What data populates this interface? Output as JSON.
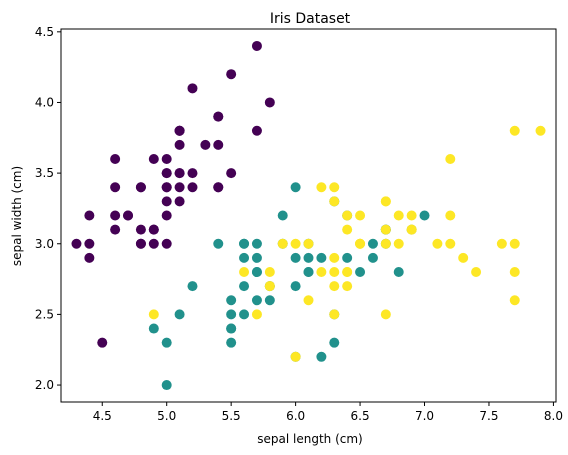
{
  "chart_data": {
    "type": "scatter",
    "title": "Iris Dataset",
    "xlabel": "sepal length (cm)",
    "ylabel": "sepal width (cm)",
    "xlim": [
      4.18,
      8.02
    ],
    "ylim": [
      1.88,
      4.52
    ],
    "xticks": [
      4.5,
      5.0,
      5.5,
      6.0,
      6.5,
      7.0,
      7.5,
      8.0
    ],
    "xtick_labels": [
      "4.5",
      "5.0",
      "5.5",
      "6.0",
      "6.5",
      "7.0",
      "7.5",
      "8.0"
    ],
    "yticks": [
      2.0,
      2.5,
      3.0,
      3.5,
      4.0,
      4.5
    ],
    "ytick_labels": [
      "2.0",
      "2.5",
      "3.0",
      "3.5",
      "4.0",
      "4.5"
    ],
    "grid": false,
    "colors": [
      "#440154",
      "#21918c",
      "#fde725"
    ],
    "series": [
      {
        "x": [
          5.1,
          4.9,
          4.7,
          4.6,
          5.0,
          5.4,
          4.6,
          5.0,
          4.4,
          4.9,
          5.4,
          4.8,
          4.8,
          4.3,
          5.8,
          5.7,
          5.4,
          5.1,
          5.7,
          5.1,
          5.4,
          5.1,
          4.6,
          5.1,
          4.8,
          5.0,
          5.0,
          5.2,
          5.2,
          4.7,
          4.8,
          5.4,
          5.2,
          5.5,
          4.9,
          5.0,
          5.5,
          4.9,
          4.4,
          5.1,
          5.0,
          4.5,
          4.4,
          5.0,
          5.1,
          4.8,
          5.1,
          4.6,
          5.3,
          5.0
        ],
        "y": [
          3.5,
          3.0,
          3.2,
          3.1,
          3.6,
          3.9,
          3.4,
          3.4,
          2.9,
          3.1,
          3.7,
          3.4,
          3.0,
          3.0,
          4.0,
          4.4,
          3.9,
          3.5,
          3.8,
          3.8,
          3.4,
          3.7,
          3.6,
          3.3,
          3.4,
          3.0,
          3.4,
          3.5,
          3.4,
          3.2,
          3.1,
          3.4,
          4.1,
          4.2,
          3.1,
          3.2,
          3.5,
          3.6,
          3.0,
          3.4,
          3.5,
          2.3,
          3.2,
          3.5,
          3.8,
          3.0,
          3.8,
          3.2,
          3.7,
          3.3
        ]
      },
      {
        "x": [
          7.0,
          6.4,
          6.9,
          5.5,
          6.5,
          5.7,
          6.3,
          4.9,
          6.6,
          5.2,
          5.0,
          5.9,
          6.0,
          6.1,
          5.6,
          6.7,
          5.6,
          5.8,
          6.2,
          5.6,
          5.9,
          6.1,
          6.3,
          6.1,
          6.4,
          6.6,
          6.8,
          6.7,
          6.0,
          5.7,
          5.5,
          5.5,
          5.8,
          6.0,
          5.4,
          6.0,
          6.7,
          6.3,
          5.6,
          5.5,
          5.5,
          6.1,
          5.8,
          5.0,
          5.6,
          5.7,
          5.7,
          6.2,
          5.1,
          5.7
        ],
        "y": [
          3.2,
          3.2,
          3.1,
          2.3,
          2.8,
          2.8,
          3.3,
          2.4,
          2.9,
          2.7,
          2.0,
          3.0,
          2.2,
          2.9,
          2.9,
          3.1,
          3.0,
          2.7,
          2.2,
          2.5,
          3.2,
          2.8,
          2.5,
          2.8,
          2.9,
          3.0,
          2.8,
          3.0,
          2.9,
          2.6,
          2.4,
          2.4,
          2.7,
          2.7,
          3.0,
          3.4,
          3.1,
          2.3,
          3.0,
          2.5,
          2.6,
          3.0,
          2.6,
          2.3,
          2.7,
          3.0,
          2.9,
          2.9,
          2.5,
          2.8
        ]
      },
      {
        "x": [
          6.3,
          5.8,
          7.1,
          6.3,
          6.5,
          7.6,
          4.9,
          7.3,
          6.7,
          7.2,
          6.5,
          6.4,
          6.8,
          5.7,
          5.8,
          6.4,
          6.5,
          7.7,
          7.7,
          6.0,
          6.9,
          5.6,
          7.7,
          6.3,
          6.7,
          7.2,
          6.2,
          6.1,
          6.4,
          7.2,
          7.4,
          7.9,
          6.4,
          6.3,
          6.1,
          7.7,
          6.3,
          6.4,
          6.0,
          6.9,
          6.7,
          6.9,
          5.8,
          6.8,
          6.7,
          6.7,
          6.3,
          6.5,
          6.2,
          5.9
        ],
        "y": [
          3.3,
          2.7,
          3.0,
          2.9,
          3.0,
          3.0,
          2.5,
          2.9,
          2.5,
          3.6,
          3.2,
          2.7,
          3.0,
          2.5,
          2.8,
          3.2,
          3.0,
          3.8,
          2.6,
          2.2,
          3.2,
          2.8,
          2.8,
          2.7,
          3.3,
          3.2,
          2.8,
          3.0,
          2.8,
          3.0,
          2.8,
          3.8,
          2.8,
          2.8,
          2.6,
          3.0,
          3.4,
          3.1,
          3.0,
          3.1,
          3.1,
          3.1,
          2.7,
          3.2,
          3.3,
          3.0,
          2.5,
          3.0,
          3.4,
          3.0
        ]
      }
    ]
  }
}
